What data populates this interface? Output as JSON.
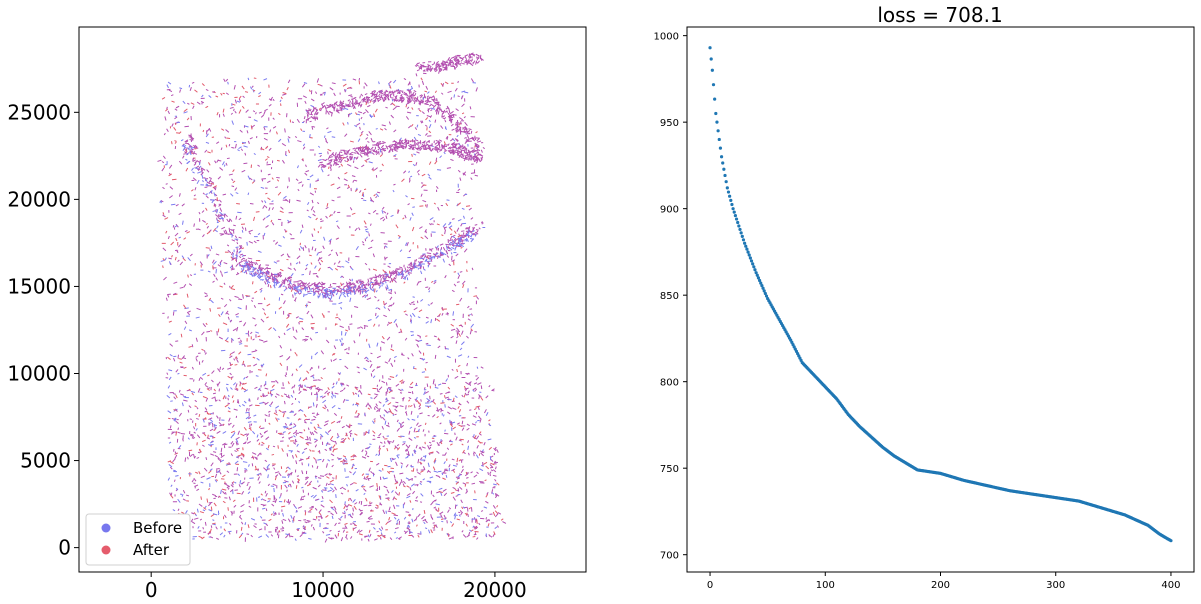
{
  "chart_data": [
    {
      "type": "scatter",
      "title": "",
      "xlabel": "",
      "ylabel": "",
      "xlim": [
        -4200,
        25300
      ],
      "ylim": [
        -1400,
        29900
      ],
      "x_ticks": [
        0,
        10000,
        20000
      ],
      "y_ticks": [
        0,
        5000,
        10000,
        15000,
        20000,
        25000
      ],
      "grid": false,
      "legend_position": "lower-left",
      "series": [
        {
          "name": "Before",
          "color": "#7b7bf0",
          "marker_color": "#7777ee",
          "description": "point cloud of tissue section coordinates before alignment",
          "x_range": [
            300,
            21000
          ],
          "y_range": [
            500,
            28400
          ]
        },
        {
          "name": "After",
          "color": "#e25a6b",
          "marker_color": "#e55c6c",
          "description": "point cloud of tissue section coordinates after alignment",
          "x_range": [
            300,
            21000
          ],
          "y_range": [
            500,
            28400
          ]
        }
      ],
      "overlap_color": "#b34fb0"
    },
    {
      "type": "scatter",
      "title": "loss = 708.1",
      "xlabel": "",
      "ylabel": "",
      "xlim": [
        -20,
        420
      ],
      "ylim": [
        690,
        1005
      ],
      "x_ticks": [
        0,
        100,
        200,
        300,
        400
      ],
      "y_ticks": [
        700,
        750,
        800,
        850,
        900,
        950,
        1000
      ],
      "grid": false,
      "color": "#1f77b4",
      "anchors_x": [
        0,
        2,
        5,
        10,
        15,
        20,
        25,
        30,
        40,
        50,
        60,
        70,
        80,
        90,
        100,
        110,
        120,
        130,
        140,
        150,
        160,
        170,
        180,
        200,
        220,
        240,
        260,
        280,
        300,
        320,
        340,
        360,
        380,
        390,
        395,
        400
      ],
      "anchors_y": [
        993,
        980,
        955,
        930,
        912,
        900,
        890,
        880,
        863,
        848,
        836,
        824,
        811,
        804,
        797,
        790,
        781,
        774,
        768,
        762,
        757,
        753,
        749,
        747,
        743,
        740,
        737,
        735,
        733,
        731,
        727,
        723,
        717,
        712,
        710,
        708.1
      ]
    }
  ]
}
